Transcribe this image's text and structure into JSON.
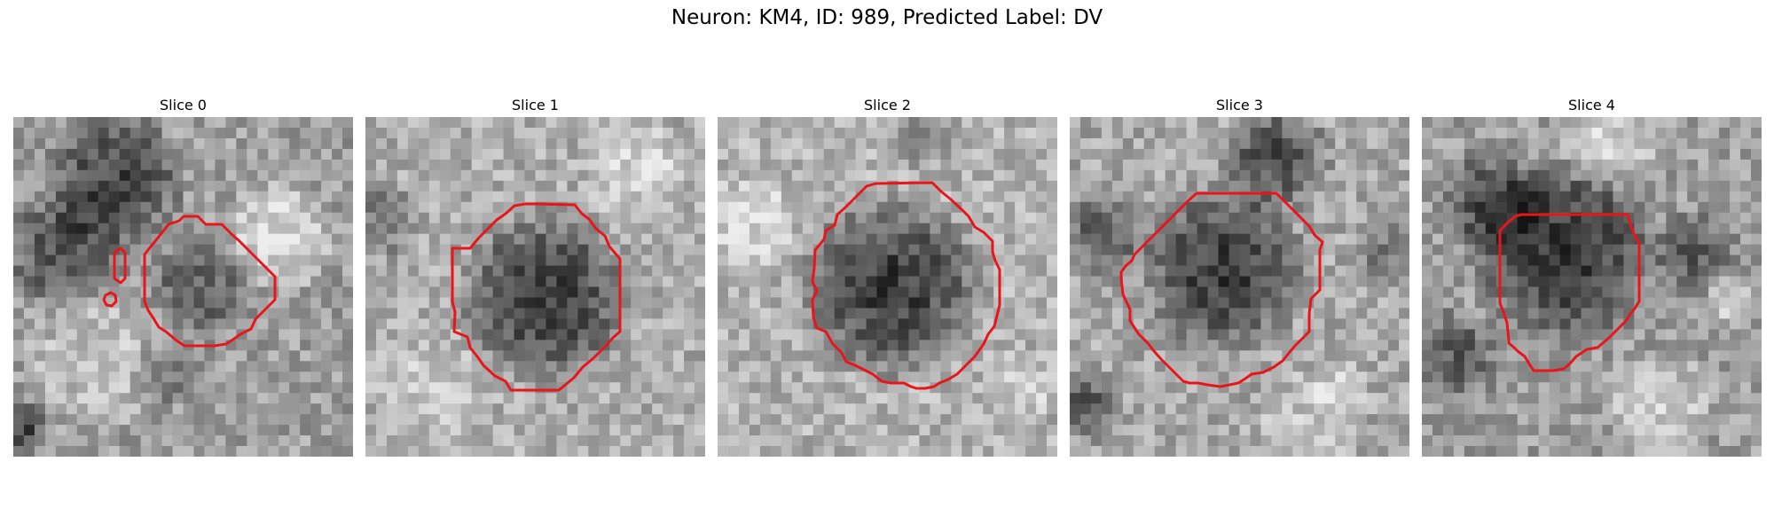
{
  "figure": {
    "suptitle": "Neuron: KM4, ID: 989, Predicted Label: DV",
    "contour_color": "#e8161b",
    "panels": [
      {
        "title": "Slice 0"
      },
      {
        "title": "Slice 1"
      },
      {
        "title": "Slice 2"
      },
      {
        "title": "Slice 3"
      },
      {
        "title": "Slice 4"
      }
    ]
  }
}
